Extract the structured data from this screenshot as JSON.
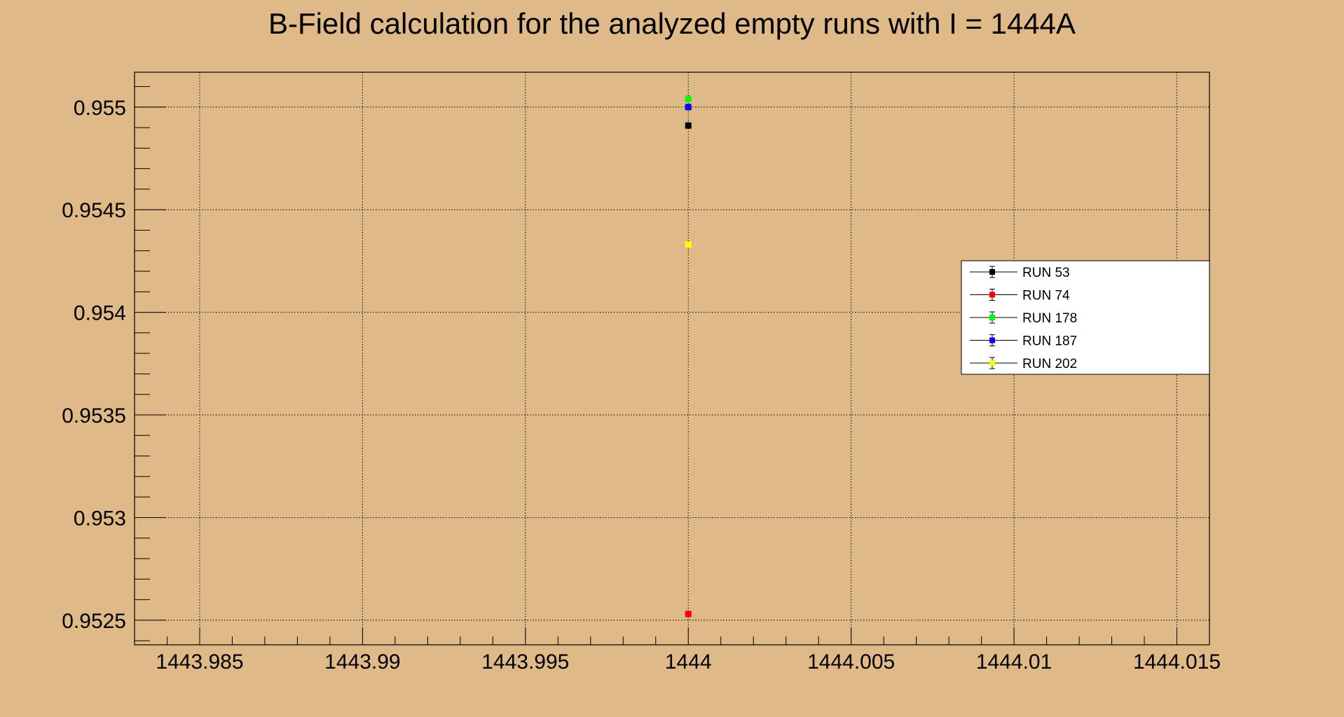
{
  "chart_data": {
    "type": "scatter",
    "title": "B-Field calculation for the analyzed empty runs with I = 1444A",
    "xlabel": "",
    "ylabel": "",
    "xlim": [
      1443.983,
      1444.016
    ],
    "ylim": [
      0.95238,
      0.95517
    ],
    "x_ticks": [
      1443.985,
      1443.99,
      1443.995,
      1444,
      1444.005,
      1444.01,
      1444.015
    ],
    "x_tick_labels": [
      "1443.985",
      "1443.99",
      "1443.995",
      "1444",
      "1444.005",
      "1444.01",
      "1444.015"
    ],
    "y_ticks": [
      0.9525,
      0.953,
      0.9535,
      0.954,
      0.9545,
      0.955
    ],
    "y_tick_labels": [
      "0.9525",
      "0.953",
      "0.9535",
      "0.954",
      "0.9545",
      "0.955"
    ],
    "grid": true,
    "legend_position": "right",
    "series": [
      {
        "name": "RUN 53",
        "color": "#000000",
        "x": [
          1444
        ],
        "y": [
          0.95491
        ]
      },
      {
        "name": "RUN 74",
        "color": "#ff0000",
        "x": [
          1444
        ],
        "y": [
          0.95253
        ]
      },
      {
        "name": "RUN 178",
        "color": "#00ff00",
        "x": [
          1444
        ],
        "y": [
          0.95504
        ]
      },
      {
        "name": "RUN 187",
        "color": "#0000ff",
        "x": [
          1444
        ],
        "y": [
          0.955
        ]
      },
      {
        "name": "RUN 202",
        "color": "#ffff00",
        "x": [
          1444
        ],
        "y": [
          0.95433
        ]
      }
    ]
  }
}
